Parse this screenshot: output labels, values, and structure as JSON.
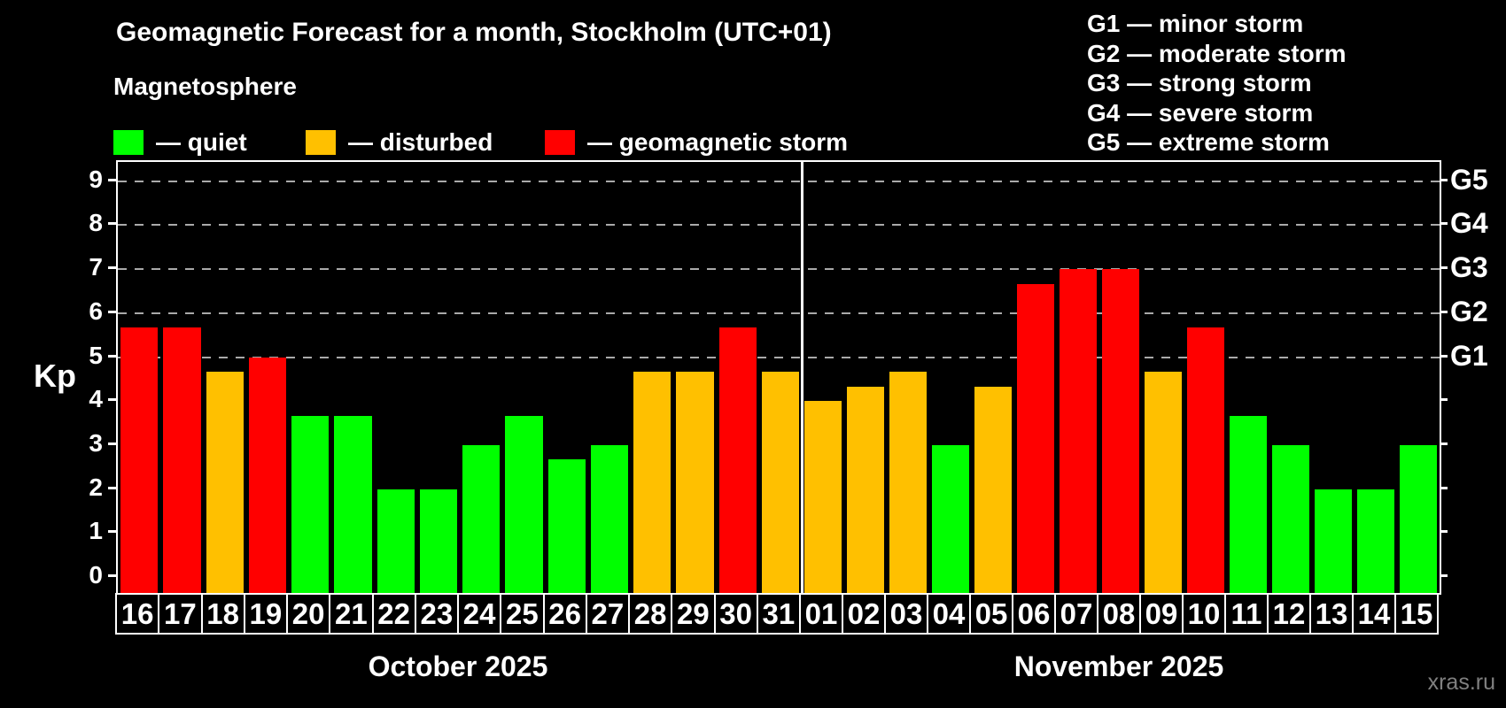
{
  "title": "Geomagnetic Forecast for a month, Stockholm (UTC+01)",
  "subtitle": "Magnetosphere",
  "legend": {
    "items": [
      {
        "name": "quiet",
        "label": "— quiet",
        "color": "#00ff00"
      },
      {
        "name": "disturbed",
        "label": "— disturbed",
        "color": "#ffc000"
      },
      {
        "name": "storm",
        "label": "— geomagnetic storm",
        "color": "#ff0000"
      }
    ]
  },
  "storm_legend": [
    "G1 — minor storm",
    "G2 — moderate storm",
    "G3 — strong storm",
    "G4 — severe storm",
    "G5 — extreme storm"
  ],
  "watermark": "xras.ru",
  "chart_data": {
    "type": "bar",
    "ylabel": "Kp",
    "ylim": [
      -0.36,
      9.44
    ],
    "y_ticks": [
      0,
      1,
      2,
      3,
      4,
      5,
      6,
      7,
      8,
      9
    ],
    "grid_levels_kp": [
      5,
      6,
      7,
      8,
      9
    ],
    "g_scale": [
      {
        "label": "G1",
        "kp": 5
      },
      {
        "label": "G2",
        "kp": 6
      },
      {
        "label": "G3",
        "kp": 7
      },
      {
        "label": "G4",
        "kp": 8
      },
      {
        "label": "G5",
        "kp": 9
      }
    ],
    "status_colors": {
      "quiet": "#00ff00",
      "disturbed": "#ffc000",
      "storm": "#ff0000"
    },
    "grid_color": "#aaaaaa",
    "months": [
      {
        "label": "October 2025",
        "days": [
          {
            "date": "16",
            "kp": 5.67,
            "status": "storm"
          },
          {
            "date": "17",
            "kp": 5.67,
            "status": "storm"
          },
          {
            "date": "18",
            "kp": 4.67,
            "status": "disturbed"
          },
          {
            "date": "19",
            "kp": 5.0,
            "status": "storm"
          },
          {
            "date": "20",
            "kp": 3.67,
            "status": "quiet"
          },
          {
            "date": "21",
            "kp": 3.67,
            "status": "quiet"
          },
          {
            "date": "22",
            "kp": 2.0,
            "status": "quiet"
          },
          {
            "date": "23",
            "kp": 2.0,
            "status": "quiet"
          },
          {
            "date": "24",
            "kp": 3.0,
            "status": "quiet"
          },
          {
            "date": "25",
            "kp": 3.67,
            "status": "quiet"
          },
          {
            "date": "26",
            "kp": 2.67,
            "status": "quiet"
          },
          {
            "date": "27",
            "kp": 3.0,
            "status": "quiet"
          },
          {
            "date": "28",
            "kp": 4.67,
            "status": "disturbed"
          },
          {
            "date": "29",
            "kp": 4.67,
            "status": "disturbed"
          },
          {
            "date": "30",
            "kp": 5.67,
            "status": "storm"
          },
          {
            "date": "31",
            "kp": 4.67,
            "status": "disturbed"
          }
        ]
      },
      {
        "label": "November 2025",
        "days": [
          {
            "date": "01",
            "kp": 4.0,
            "status": "disturbed"
          },
          {
            "date": "02",
            "kp": 4.33,
            "status": "disturbed"
          },
          {
            "date": "03",
            "kp": 4.67,
            "status": "disturbed"
          },
          {
            "date": "04",
            "kp": 3.0,
            "status": "quiet"
          },
          {
            "date": "05",
            "kp": 4.33,
            "status": "disturbed"
          },
          {
            "date": "06",
            "kp": 6.67,
            "status": "storm"
          },
          {
            "date": "07",
            "kp": 7.0,
            "status": "storm"
          },
          {
            "date": "08",
            "kp": 7.0,
            "status": "storm"
          },
          {
            "date": "09",
            "kp": 4.67,
            "status": "disturbed"
          },
          {
            "date": "10",
            "kp": 5.67,
            "status": "storm"
          },
          {
            "date": "11",
            "kp": 3.67,
            "status": "quiet"
          },
          {
            "date": "12",
            "kp": 3.0,
            "status": "quiet"
          },
          {
            "date": "13",
            "kp": 2.0,
            "status": "quiet"
          },
          {
            "date": "14",
            "kp": 2.0,
            "status": "quiet"
          },
          {
            "date": "15",
            "kp": 3.0,
            "status": "quiet"
          }
        ]
      }
    ]
  }
}
